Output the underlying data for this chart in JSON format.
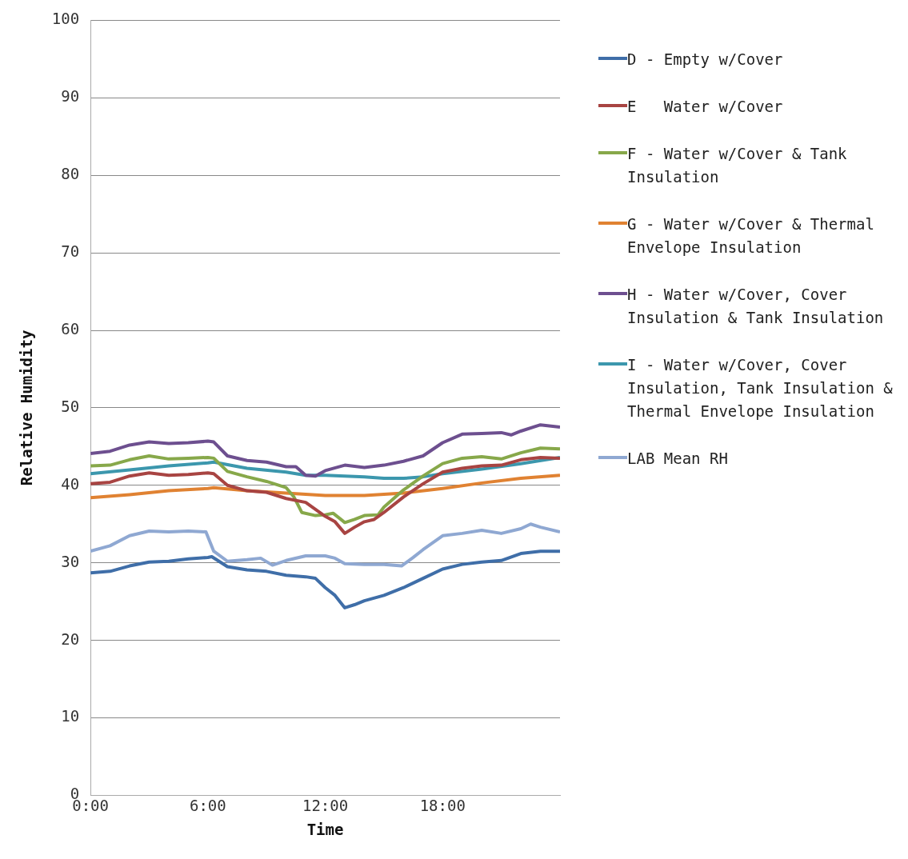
{
  "chart_data": {
    "type": "line",
    "xlabel": "Time",
    "ylabel": "Relative Humidity",
    "xlim": [
      0,
      24
    ],
    "xticks": [
      {
        "value": 0,
        "label": "0:00"
      },
      {
        "value": 6,
        "label": "6:00"
      },
      {
        "value": 12,
        "label": "12:00"
      },
      {
        "value": 18,
        "label": "18:00"
      }
    ],
    "ylim": [
      0,
      100
    ],
    "yticks": [
      0,
      10,
      20,
      30,
      40,
      50,
      60,
      70,
      80,
      90,
      100
    ],
    "grid": "y",
    "legend": "right",
    "marker": "none",
    "line_style": "solid",
    "series": [
      {
        "name": "D - Empty w/Cover",
        "color": "#3f6ea8",
        "x": [
          0,
          1,
          2,
          3,
          4,
          5,
          6,
          6.2,
          7,
          8,
          9,
          10,
          11,
          11.5,
          12,
          12.5,
          13,
          13.5,
          14,
          15,
          16,
          17,
          18,
          19,
          20,
          21,
          22,
          23,
          24
        ],
        "values": [
          28.7,
          28.9,
          29.6,
          30.1,
          30.2,
          30.5,
          30.7,
          30.8,
          29.5,
          29.1,
          28.9,
          28.4,
          28.2,
          28.0,
          26.8,
          25.8,
          24.2,
          24.6,
          25.1,
          25.8,
          26.8,
          28.0,
          29.2,
          29.8,
          30.1,
          30.3,
          31.2,
          31.5,
          31.5
        ]
      },
      {
        "name": "E   Water w/Cover",
        "color": "#a84442",
        "x": [
          0,
          1,
          2,
          3,
          4,
          5,
          6,
          6.3,
          7,
          8,
          9,
          10,
          11,
          12,
          12.5,
          13,
          13.5,
          14,
          14.5,
          15,
          16,
          17,
          18,
          19,
          20,
          21,
          22,
          23,
          24
        ],
        "values": [
          40.2,
          40.4,
          41.2,
          41.6,
          41.3,
          41.4,
          41.6,
          41.5,
          40.0,
          39.3,
          39.1,
          38.3,
          37.8,
          36.0,
          35.3,
          33.8,
          34.6,
          35.3,
          35.6,
          36.5,
          38.5,
          40.2,
          41.7,
          42.2,
          42.5,
          42.6,
          43.3,
          43.6,
          43.5
        ]
      },
      {
        "name": "F - Water w/Cover & Tank Insulation",
        "color": "#87a84a",
        "x": [
          0,
          1,
          2,
          3,
          4,
          5,
          6,
          6.3,
          7,
          8,
          9,
          10,
          10.4,
          10.8,
          11.5,
          12,
          12.4,
          12.8,
          13,
          13.5,
          14,
          14.7,
          15,
          16,
          17,
          18,
          19,
          20,
          21,
          22,
          23,
          24
        ],
        "values": [
          42.5,
          42.6,
          43.3,
          43.8,
          43.4,
          43.5,
          43.6,
          43.5,
          41.8,
          41.1,
          40.5,
          39.7,
          38.5,
          36.5,
          36.1,
          36.2,
          36.4,
          35.6,
          35.2,
          35.6,
          36.1,
          36.2,
          37.2,
          39.4,
          41.2,
          42.8,
          43.5,
          43.7,
          43.4,
          44.2,
          44.8,
          44.7
        ]
      },
      {
        "name": "G - Water w/Cover & Thermal Envelope Insulation",
        "color": "#e08232",
        "x": [
          0,
          2,
          4,
          6,
          6.3,
          8,
          10,
          12,
          14,
          16,
          18,
          20,
          22,
          24
        ],
        "values": [
          38.4,
          38.8,
          39.3,
          39.6,
          39.7,
          39.3,
          39.0,
          38.7,
          38.7,
          39.0,
          39.6,
          40.3,
          40.9,
          41.3
        ]
      },
      {
        "name": "H - Water w/Cover, Cover Insulation & Tank Insulation",
        "color": "#6d4f8f",
        "x": [
          0,
          1,
          2,
          3,
          4,
          5,
          6,
          6.3,
          7,
          8,
          9,
          10,
          10.5,
          11,
          11.5,
          12,
          13,
          14,
          15,
          16,
          17,
          18,
          19,
          20,
          21,
          21.5,
          22,
          23,
          24
        ],
        "values": [
          44.1,
          44.4,
          45.2,
          45.6,
          45.4,
          45.5,
          45.7,
          45.6,
          43.8,
          43.2,
          43.0,
          42.4,
          42.4,
          41.3,
          41.2,
          41.9,
          42.6,
          42.3,
          42.6,
          43.1,
          43.8,
          45.5,
          46.6,
          46.7,
          46.8,
          46.5,
          47.0,
          47.8,
          47.5
        ]
      },
      {
        "name": "I - Water w/Cover, Cover Insulation, Tank Insulation & Thermal Envelope Insulation",
        "color": "#3c97ad",
        "x": [
          0,
          2,
          4,
          6,
          6.3,
          8,
          10,
          11,
          12,
          14,
          15,
          16,
          17,
          18,
          20,
          22,
          24
        ],
        "values": [
          41.5,
          42.0,
          42.5,
          42.9,
          43.0,
          42.2,
          41.7,
          41.3,
          41.3,
          41.1,
          40.9,
          40.9,
          41.1,
          41.5,
          42.1,
          42.8,
          43.6
        ]
      },
      {
        "name": "LAB Mean RH",
        "color": "#8fa8d2",
        "x": [
          0,
          1,
          2,
          3,
          4,
          5,
          5.9,
          6.3,
          7,
          8,
          8.7,
          9.3,
          10,
          11,
          12,
          12.5,
          13,
          14,
          15,
          15.9,
          16.5,
          17,
          18,
          19,
          20,
          21,
          22,
          22.5,
          23,
          24
        ],
        "values": [
          31.5,
          32.2,
          33.5,
          34.1,
          34.0,
          34.1,
          34.0,
          31.5,
          30.2,
          30.4,
          30.6,
          29.7,
          30.3,
          30.9,
          30.9,
          30.6,
          29.9,
          29.8,
          29.8,
          29.6,
          30.7,
          31.7,
          33.5,
          33.8,
          34.2,
          33.8,
          34.4,
          35.0,
          34.6,
          34.0
        ]
      }
    ]
  }
}
